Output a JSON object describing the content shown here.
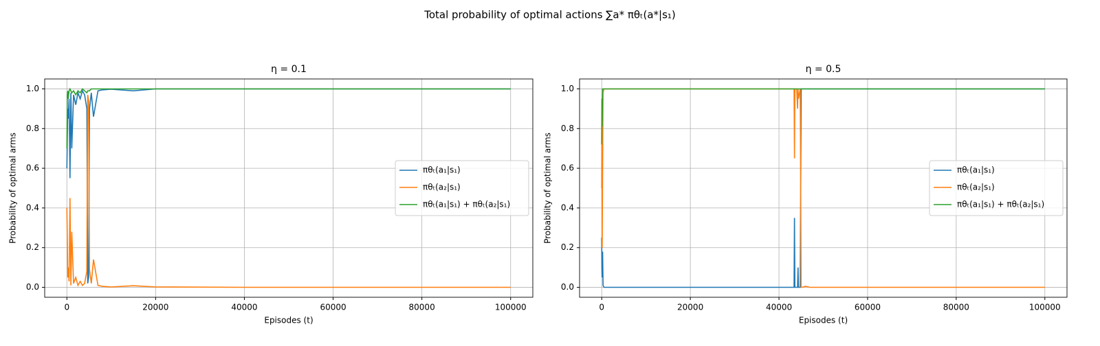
{
  "title": "Total probability of optimal actions ∑a* πθₜ(a*|s₁)",
  "chart_data": [
    {
      "type": "line",
      "title": "η = 0.1",
      "x_label": "Episodes (t)",
      "y_label": "Probability of optimal arms",
      "x": [
        0,
        100,
        200,
        300,
        500,
        700,
        900,
        1100,
        1500,
        2000,
        2500,
        3000,
        3500,
        4000,
        4500,
        4700,
        4900,
        5100,
        5500,
        6000,
        7000,
        8000,
        10000,
        15000,
        20000,
        40000,
        60000,
        80000,
        100000
      ],
      "series": [
        {
          "name": "πθₜ(a₁|s₁)",
          "color": "#1f77b4",
          "values": [
            0.6,
            0.75,
            0.9,
            0.85,
            0.95,
            0.55,
            0.98,
            0.7,
            0.97,
            0.92,
            0.98,
            0.95,
            0.99,
            0.97,
            0.9,
            0.02,
            0.05,
            0.9,
            0.98,
            0.86,
            0.99,
            0.995,
            0.998,
            0.99,
            1,
            1,
            1,
            1,
            1
          ]
        },
        {
          "name": "πθₜ(a₂|s₁)",
          "color": "#ff7f0e",
          "values": [
            0.4,
            0.25,
            0.05,
            0.1,
            0.03,
            0.45,
            0.01,
            0.28,
            0.02,
            0.05,
            0.01,
            0.03,
            0.01,
            0.02,
            0.08,
            0.97,
            0.94,
            0.09,
            0.02,
            0.14,
            0.01,
            0.005,
            0.002,
            0.008,
            0.002,
            0,
            0,
            0,
            0
          ]
        },
        {
          "name": "πθₜ(a₁|s₁) + πθₜ(a₂|s₁)",
          "color": "#2ca02c",
          "values": [
            0.7,
            0.97,
            0.99,
            0.95,
            0.99,
            1,
            0.99,
            0.98,
            0.99,
            0.97,
            0.99,
            0.98,
            1,
            0.99,
            0.98,
            0.99,
            0.99,
            0.99,
            1,
            1,
            1,
            1,
            1,
            1,
            1,
            1,
            1,
            1,
            1
          ]
        }
      ],
      "xlim": [
        -5000,
        105000
      ],
      "ylim": [
        -0.05,
        1.05
      ],
      "xticks": [
        0,
        20000,
        40000,
        60000,
        80000,
        100000
      ],
      "yticks": [
        {
          "value": 0,
          "label": "0.0"
        },
        0.2,
        0.4,
        0.6,
        0.8,
        {
          "value": 1,
          "label": "1.0"
        }
      ],
      "grid": true,
      "legend": "center right"
    },
    {
      "type": "line",
      "title": "η = 0.5",
      "x_label": "Episodes (t)",
      "y_label": "Probability of optimal arms",
      "x": [
        0,
        50,
        100,
        200,
        300,
        500,
        1000,
        5000,
        20000,
        43000,
        43400,
        43500,
        43600,
        44000,
        44200,
        44300,
        44400,
        44800,
        45000,
        45200,
        46000,
        47000,
        60000,
        100000
      ],
      "series": [
        {
          "name": "πθₜ(a₁|s₁)",
          "color": "#1f77b4",
          "values": [
            0.25,
            0.1,
            0.05,
            0.18,
            0.01,
            0,
            0,
            0,
            0,
            0,
            0,
            0.35,
            0,
            0,
            0,
            0.1,
            0,
            0,
            1,
            1,
            1,
            1,
            1,
            1
          ]
        },
        {
          "name": "πθₜ(a₂|s₁)",
          "color": "#ff7f0e",
          "values": [
            0.5,
            0.8,
            0.2,
            0.6,
            0.98,
            1,
            1,
            1,
            1,
            1,
            1,
            0.65,
            1,
            1,
            0.9,
            1,
            0.95,
            1,
            0,
            0,
            0.005,
            0,
            0,
            0
          ]
        },
        {
          "name": "πθₜ(a₁|s₁) + πθₜ(a₂|s₁)",
          "color": "#2ca02c",
          "values": [
            0.72,
            0.95,
            0.81,
            1,
            1,
            1,
            1,
            1,
            1,
            1,
            1,
            1,
            1,
            1,
            1,
            1,
            1,
            1,
            1,
            1,
            1,
            1,
            1,
            1
          ]
        }
      ],
      "xlim": [
        -5000,
        105000
      ],
      "ylim": [
        -0.05,
        1.05
      ],
      "xticks": [
        0,
        20000,
        40000,
        60000,
        80000,
        100000
      ],
      "yticks": [
        {
          "value": 0,
          "label": "0.0"
        },
        0.2,
        0.4,
        0.6,
        0.8,
        {
          "value": 1,
          "label": "1.0"
        }
      ],
      "grid": true,
      "legend": "center right"
    }
  ]
}
